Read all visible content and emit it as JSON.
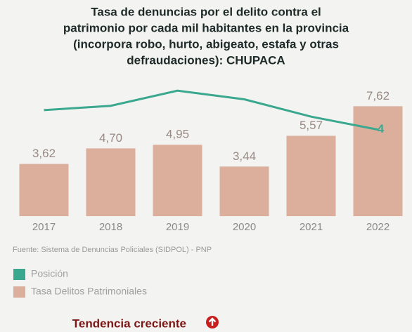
{
  "chart_data": {
    "type": "bar_line",
    "title": [
      "Tasa de denuncias por el delito contra el",
      "patrimonio por cada mil habitantes en la provincia",
      "(incorpora robo, hurto, abigeato, estafa y otras",
      "defraudaciones): CHUPACA"
    ],
    "categories": [
      "2017",
      "2018",
      "2019",
      "2020",
      "2021",
      "2022"
    ],
    "ylim": [
      0,
      9
    ],
    "y2lim": [
      0,
      6
    ],
    "series": [
      {
        "name": "Posición",
        "type": "line",
        "axis": "y2",
        "color": "#3aa88f",
        "values": [
          4.9,
          5.1,
          5.8,
          5.4,
          4.6,
          4
        ],
        "value_labels": [
          null,
          null,
          null,
          null,
          null,
          "4"
        ]
      },
      {
        "name": "Tasa Delitos Patrimoniales",
        "type": "bar",
        "color": "#dcae9c",
        "values": [
          3.62,
          4.7,
          4.95,
          3.44,
          5.57,
          7.62
        ],
        "value_labels": [
          "3,62",
          "4,70",
          "4,95",
          "3,44",
          "5,57",
          "7,62"
        ]
      }
    ],
    "source": "Fuente: Sistema de Denuncias Policiales (SIDPOL) - PNP",
    "trend": "Tendencia creciente"
  }
}
